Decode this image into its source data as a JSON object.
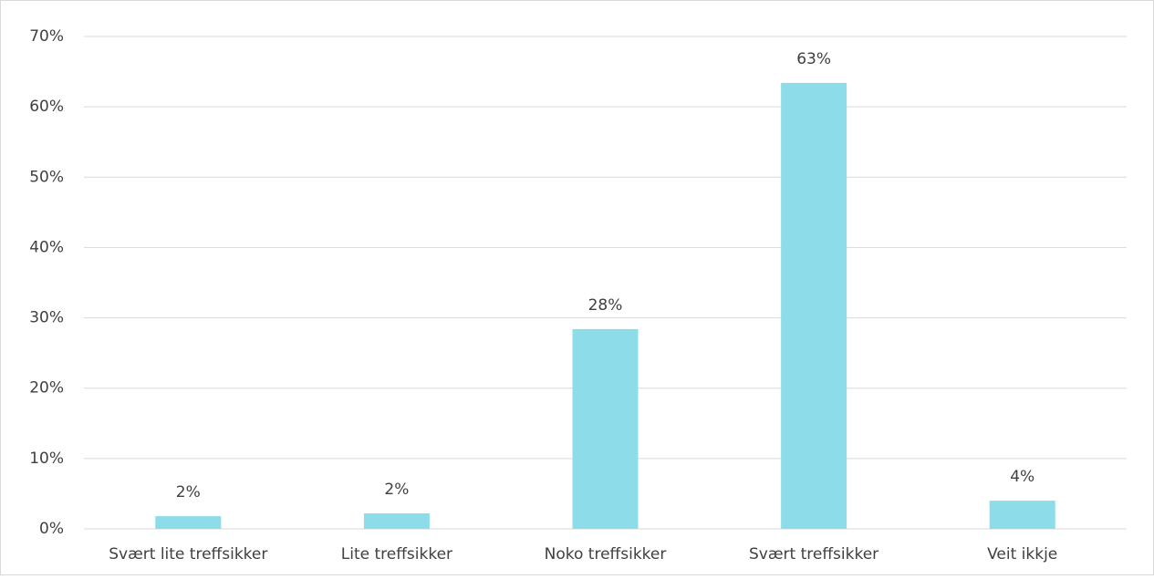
{
  "chart_data": {
    "type": "bar",
    "categories": [
      "Svært lite treffsikker",
      "Lite treffsikker",
      "Noko treffsikker",
      "Svært treffsikker",
      "Veit ikkje"
    ],
    "values": [
      1.8,
      2.2,
      28.4,
      63.4,
      4.0
    ],
    "value_labels": [
      "2%",
      "2%",
      "28%",
      "63%",
      "4%"
    ],
    "color": "#8ddcea",
    "ylim": [
      0,
      70
    ],
    "yticks": [
      {
        "value": 0,
        "label": "0%"
      },
      {
        "value": 10,
        "label": "10%"
      },
      {
        "value": 20,
        "label": "20%"
      },
      {
        "value": 30,
        "label": "30%"
      },
      {
        "value": 40,
        "label": "40%"
      },
      {
        "value": 50,
        "label": "50%"
      },
      {
        "value": 60,
        "label": "60%"
      },
      {
        "value": 70,
        "label": "70%"
      }
    ],
    "grid": true
  }
}
